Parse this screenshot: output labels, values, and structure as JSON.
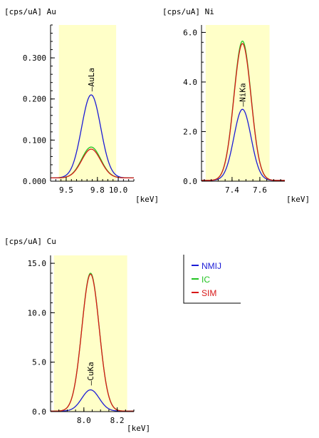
{
  "colors": {
    "highlight": "#ffffc8",
    "nmij": "#1c1cd6",
    "ic": "#22c422",
    "sim": "#d81818",
    "axis": "#000000"
  },
  "chart_data": [
    {
      "id": "au",
      "type": "line",
      "title": "[cps/uA] Au",
      "xlabel": "[keV]",
      "xlim": [
        9.35,
        10.15
      ],
      "ylim": [
        0,
        0.38
      ],
      "x_ticks": [
        9.5,
        9.8,
        10.0
      ],
      "x_tick_labels": [
        "9.5",
        "9.8",
        "10.0"
      ],
      "y_ticks": [
        0,
        0.1,
        0.2,
        0.3
      ],
      "y_tick_labels": [
        "0.000",
        "0.100",
        "0.200",
        "0.300"
      ],
      "roi": [
        9.43,
        9.98
      ],
      "peak_label": "AuLa",
      "peak_center": 9.74,
      "peak_sigma": 0.092,
      "label_value": 0.215,
      "series": [
        {
          "name": "NMIJ",
          "baseline": 0.008,
          "peak": 0.21
        },
        {
          "name": "IC",
          "baseline": 0.008,
          "peak": 0.083
        },
        {
          "name": "SIM",
          "baseline": 0.008,
          "peak": 0.078
        }
      ]
    },
    {
      "id": "ni",
      "type": "line",
      "title": "[cps/uA] Ni",
      "xlabel": "[keV]",
      "xlim": [
        7.18,
        7.78
      ],
      "ylim": [
        0,
        6.3
      ],
      "x_ticks": [
        7.4,
        7.6
      ],
      "x_tick_labels": [
        "7.4",
        "7.6"
      ],
      "y_ticks": [
        0,
        2,
        4,
        6
      ],
      "y_tick_labels": [
        "0.0",
        "2.0",
        "4.0",
        "6.0"
      ],
      "roi": [
        7.21,
        7.67
      ],
      "peak_label": "NiKa",
      "peak_center": 7.475,
      "peak_sigma": 0.062,
      "label_value": 2.95,
      "series": [
        {
          "name": "NMIJ",
          "baseline": 0.03,
          "peak": 2.9
        },
        {
          "name": "IC",
          "baseline": 0.03,
          "peak": 5.65
        },
        {
          "name": "SIM",
          "baseline": 0.03,
          "peak": 5.55
        }
      ]
    },
    {
      "id": "cu",
      "type": "line",
      "title": "[cps/uA] Cu",
      "xlabel": "[keV]",
      "xlim": [
        7.8,
        8.3
      ],
      "ylim": [
        0,
        15.8
      ],
      "x_ticks": [
        8.0,
        8.2
      ],
      "x_tick_labels": [
        "8.0",
        "8.2"
      ],
      "y_ticks": [
        0,
        5,
        10,
        15
      ],
      "y_tick_labels": [
        "0.0",
        "5.0",
        "10.0",
        "15.0"
      ],
      "roi": [
        7.82,
        8.26
      ],
      "peak_label": "CuKa",
      "peak_center": 8.04,
      "peak_sigma": 0.052,
      "label_value": 2.5,
      "series": [
        {
          "name": "NMIJ",
          "baseline": 0.05,
          "peak": 2.2
        },
        {
          "name": "IC",
          "baseline": 0.05,
          "peak": 14.0
        },
        {
          "name": "SIM",
          "baseline": 0.05,
          "peak": 13.9
        }
      ]
    }
  ],
  "legend": {
    "items": [
      {
        "label": "NMIJ",
        "color": "#1c1cd6"
      },
      {
        "label": "IC",
        "color": "#22c422"
      },
      {
        "label": "SIM",
        "color": "#d81818"
      }
    ]
  }
}
